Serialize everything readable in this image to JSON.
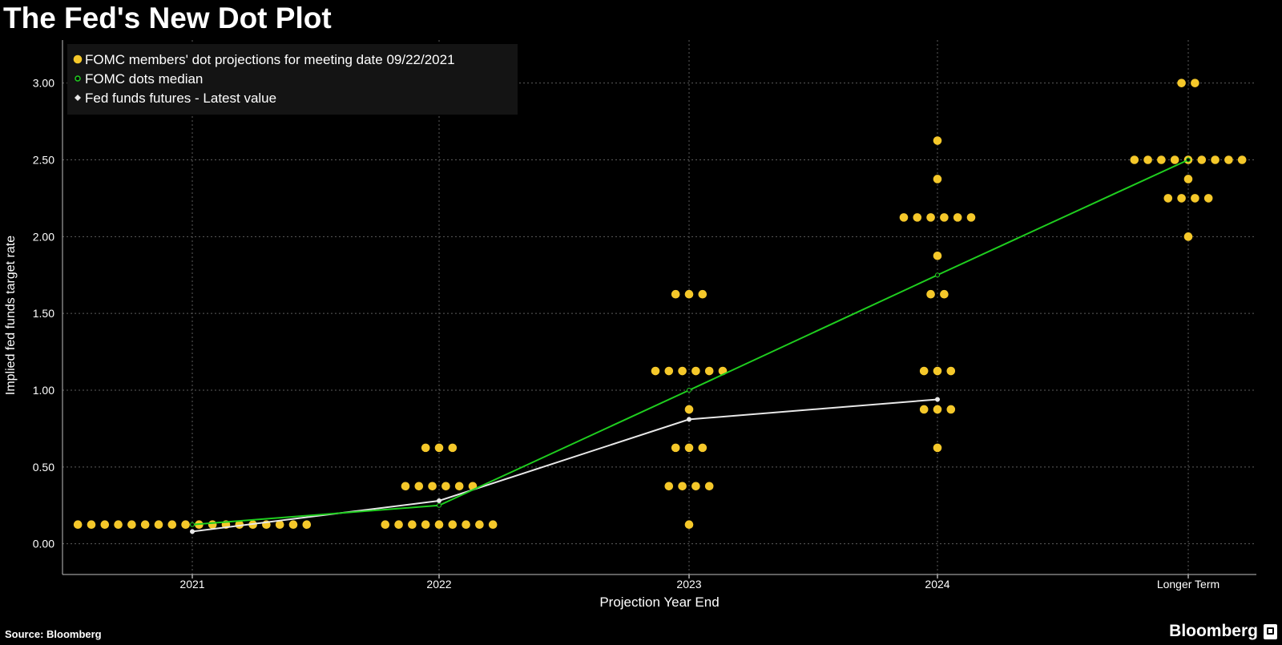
{
  "header": {
    "title": "The Fed's New Dot Plot"
  },
  "footer": {
    "source": "Source: Bloomberg",
    "brand": "Bloomberg"
  },
  "colors": {
    "background": "#000000",
    "dots": "#f5c82a",
    "median": "#1fce1f",
    "futures": "#e8e8e8",
    "grid": "#5c5c5c",
    "text": "#ffffff",
    "legend_bg": "#141414"
  },
  "chart_data": {
    "type": "scatter",
    "xlabel": "Projection Year End",
    "ylabel": "Implied fed funds target rate",
    "categories": [
      "2021",
      "2022",
      "2023",
      "2024",
      "Longer Term"
    ],
    "ylim": [
      -0.2,
      3.28
    ],
    "yticks": [
      "0.00",
      "0.50",
      "1.00",
      "1.50",
      "2.00",
      "2.50",
      "3.00"
    ],
    "grid": true,
    "legend": {
      "placement": "top-left",
      "entries": [
        "FOMC members' dot projections for meeting date 09/22/2021",
        "FOMC dots median",
        "Fed funds futures - Latest value"
      ]
    },
    "series": [
      {
        "name": "FOMC members' dot projections for meeting date 09/22/2021",
        "kind": "dots",
        "groups": [
          {
            "category": "2021",
            "levels": [
              {
                "y": 0.125,
                "count": 18
              }
            ]
          },
          {
            "category": "2022",
            "levels": [
              {
                "y": 0.125,
                "count": 9
              },
              {
                "y": 0.375,
                "count": 6
              },
              {
                "y": 0.625,
                "count": 3
              }
            ]
          },
          {
            "category": "2023",
            "levels": [
              {
                "y": 0.125,
                "count": 1
              },
              {
                "y": 0.375,
                "count": 4
              },
              {
                "y": 0.625,
                "count": 3
              },
              {
                "y": 0.875,
                "count": 1
              },
              {
                "y": 1.125,
                "count": 6
              },
              {
                "y": 1.625,
                "count": 3
              }
            ]
          },
          {
            "category": "2024",
            "levels": [
              {
                "y": 0.625,
                "count": 1
              },
              {
                "y": 0.875,
                "count": 3
              },
              {
                "y": 1.125,
                "count": 3
              },
              {
                "y": 1.625,
                "count": 2
              },
              {
                "y": 1.875,
                "count": 1
              },
              {
                "y": 2.125,
                "count": 6
              },
              {
                "y": 2.375,
                "count": 1
              },
              {
                "y": 2.625,
                "count": 1
              }
            ]
          },
          {
            "category": "Longer Term",
            "levels": [
              {
                "y": 2.0,
                "count": 1
              },
              {
                "y": 2.25,
                "count": 4
              },
              {
                "y": 2.375,
                "count": 1
              },
              {
                "y": 2.5,
                "count": 9
              },
              {
                "y": 3.0,
                "count": 2
              }
            ]
          }
        ]
      },
      {
        "name": "FOMC dots median",
        "kind": "line",
        "values": [
          0.125,
          0.25,
          1.0,
          1.75,
          2.5
        ]
      },
      {
        "name": "Fed funds futures - Latest value",
        "kind": "line",
        "values": [
          0.08,
          0.28,
          0.81,
          0.94,
          null
        ]
      }
    ]
  }
}
